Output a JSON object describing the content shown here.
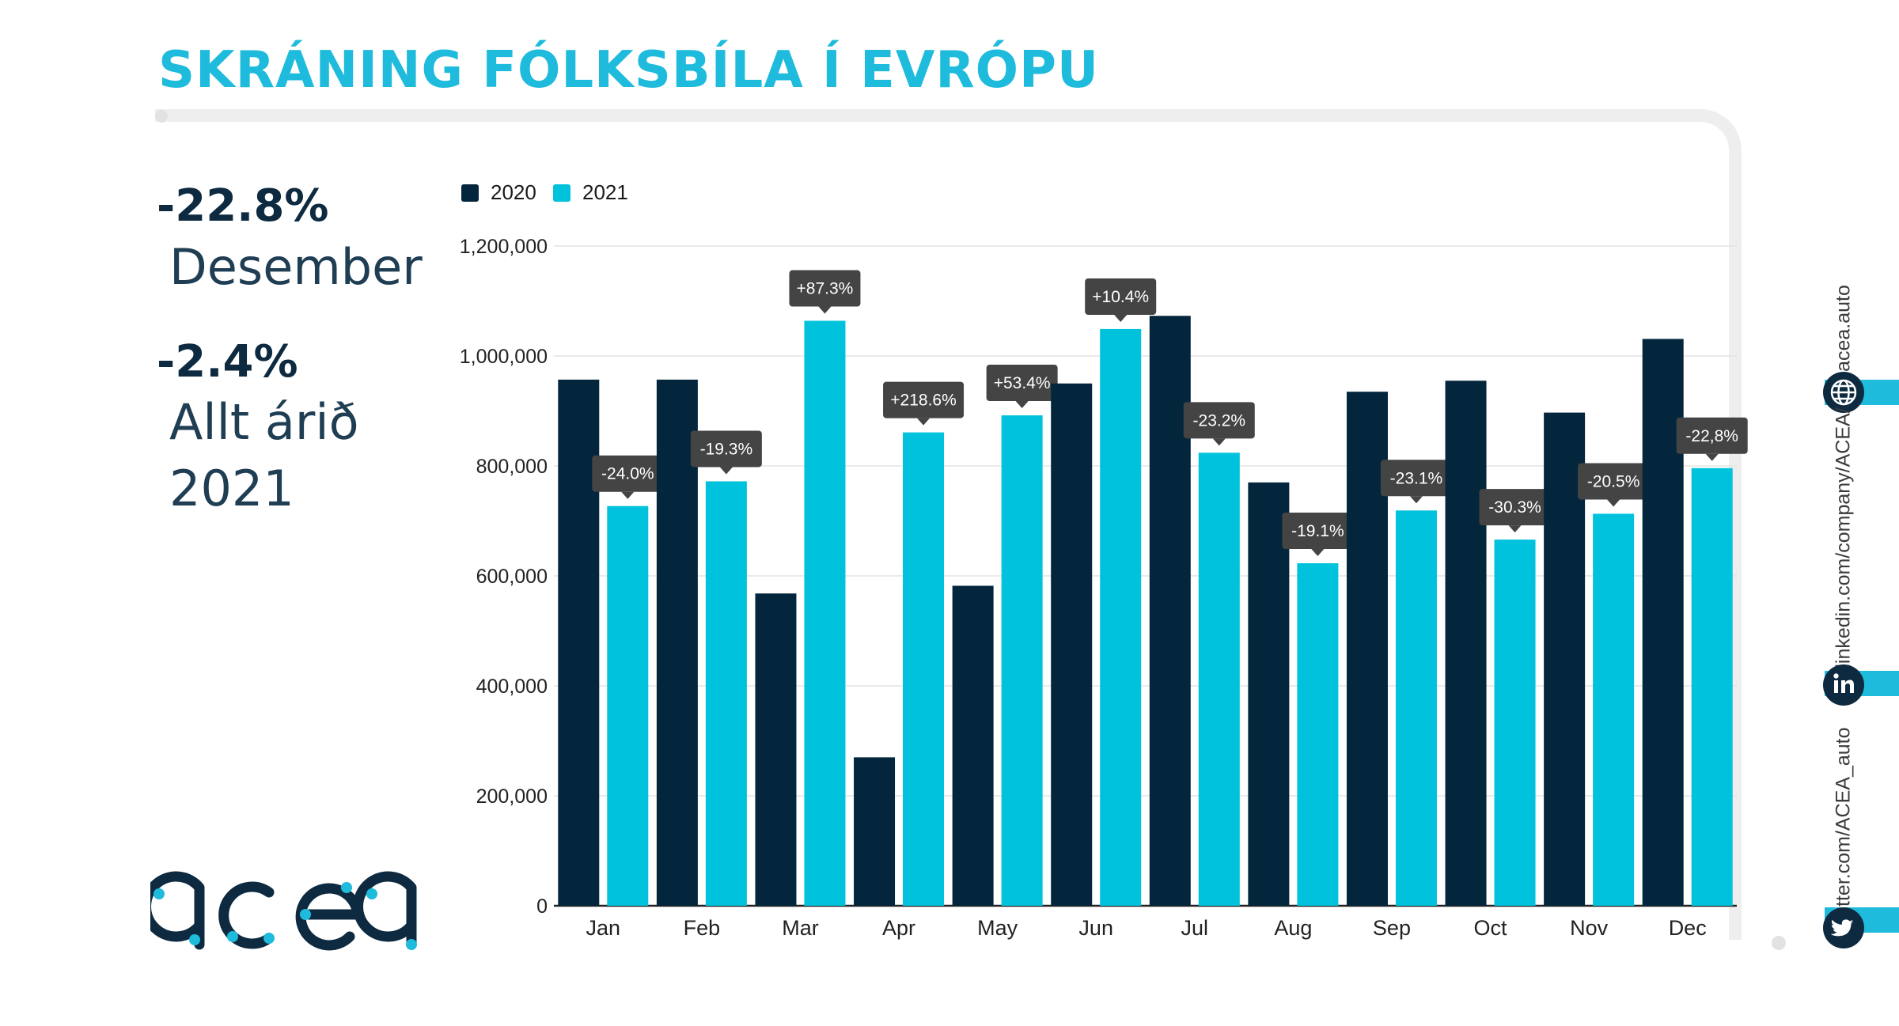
{
  "title": "SKRÁNING FÓLKSBÍLA Í EVRÓPU",
  "stats": {
    "month_pct": "-22.8%",
    "month_label": "Desember",
    "year_pct": "-2.4%",
    "year_label_1": "Allt árið",
    "year_label_2": "2021"
  },
  "logo": {
    "text": "acea"
  },
  "social": {
    "web": "acea.auto",
    "linkedin": "linkedin.com/company/ACEA/",
    "twitter": "twitter.com/ACEA_auto",
    "icons": [
      "globe-icon",
      "linkedin-icon",
      "twitter-icon"
    ]
  },
  "colors": {
    "accent": "#1ebbdc",
    "dark": "#0d2a40",
    "series_2020": "#04263c",
    "series_2021": "#00c2dc",
    "label_bg": "#444444"
  },
  "chart_data": {
    "type": "bar",
    "categories": [
      "Jan",
      "Feb",
      "Mar",
      "Apr",
      "May",
      "Jun",
      "Jul",
      "Aug",
      "Sep",
      "Oct",
      "Nov",
      "Dec"
    ],
    "series": [
      {
        "name": "2020",
        "values": [
          957000,
          957000,
          568000,
          270000,
          582000,
          950000,
          1073000,
          770000,
          935000,
          955000,
          897000,
          1031000
        ]
      },
      {
        "name": "2021",
        "values": [
          727000,
          772000,
          1064000,
          861000,
          892000,
          1049000,
          824000,
          623000,
          719000,
          666000,
          713000,
          796000
        ]
      }
    ],
    "change_labels": [
      "-24.0%",
      "-19.3%",
      "+87.3%",
      "+218.6%",
      "+53.4%",
      "+10.4%",
      "-23.2%",
      "-19.1%",
      "-23.1%",
      "-30.3%",
      "-20.5%",
      "-22,8%"
    ],
    "yticks": [
      "0",
      "200,000",
      "400,000",
      "600,000",
      "800,000",
      "1,000,000",
      "1,200,000"
    ],
    "ylim": [
      0,
      1200000
    ],
    "grid": true,
    "legend": "top-left"
  }
}
